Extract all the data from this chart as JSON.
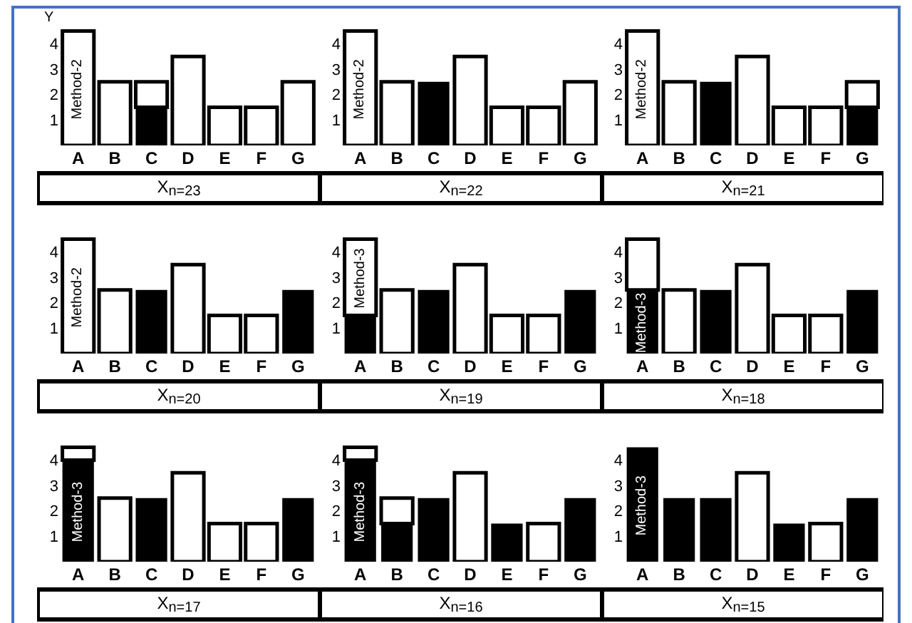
{
  "chart_data": [
    {
      "type": "bar",
      "stacked": true,
      "categories": [
        "A",
        "B",
        "C",
        "D",
        "E",
        "F",
        "G"
      ],
      "series": [
        {
          "color": "#000000",
          "values": [
            null,
            null,
            1.5,
            null,
            null,
            null,
            null
          ]
        },
        {
          "color": "#ffffff",
          "values": [
            4.5,
            2.5,
            1,
            3.5,
            1.5,
            1.5,
            2.5
          ]
        }
      ],
      "ylim": [
        0,
        4.6
      ],
      "yticks": [
        1,
        2,
        3,
        4
      ],
      "ylabel": "Y",
      "xlabel": "X$_{n=23}$",
      "annotations": [
        "Method-2"
      ]
    },
    {
      "type": "bar",
      "stacked": true,
      "categories": [
        "A",
        "B",
        "C",
        "D",
        "E",
        "F",
        "G"
      ],
      "series": [
        {
          "color": "#000000",
          "values": [
            null,
            null,
            2.5,
            null,
            null,
            null,
            null
          ]
        },
        {
          "color": "#ffffff",
          "values": [
            4.5,
            2.5,
            null,
            3.5,
            1.5,
            1.5,
            2.5
          ]
        }
      ],
      "ylim": [
        0,
        4.6
      ],
      "yticks": [
        1,
        2,
        3,
        4
      ],
      "xlabel": "X$_{n=22}$",
      "annotations": [
        "Method-2"
      ]
    },
    {
      "type": "bar",
      "stacked": true,
      "categories": [
        "A",
        "B",
        "C",
        "D",
        "E",
        "F",
        "G"
      ],
      "series": [
        {
          "color": "#000000",
          "values": [
            null,
            null,
            2.5,
            null,
            null,
            null,
            1.5
          ]
        },
        {
          "color": "#ffffff",
          "values": [
            4.5,
            2.5,
            null,
            3.5,
            1.5,
            1.5,
            1
          ]
        }
      ],
      "ylim": [
        0,
        4.6
      ],
      "yticks": [
        1,
        2,
        3,
        4
      ],
      "xlabel": "X$_{n=21}$",
      "annotations": [
        "Method-2"
      ]
    },
    {
      "type": "bar",
      "stacked": true,
      "categories": [
        "A",
        "B",
        "C",
        "D",
        "E",
        "F",
        "G"
      ],
      "series": [
        {
          "color": "#000000",
          "values": [
            null,
            null,
            2.5,
            null,
            null,
            null,
            2.5
          ]
        },
        {
          "color": "#ffffff",
          "values": [
            4.5,
            2.5,
            null,
            3.5,
            1.5,
            1.5,
            null
          ]
        }
      ],
      "ylim": [
        0,
        4.6
      ],
      "yticks": [
        1,
        2,
        3,
        4
      ],
      "xlabel": "X$_{n=20}$",
      "annotations": [
        "Method-2"
      ]
    },
    {
      "type": "bar",
      "stacked": true,
      "categories": [
        "A",
        "B",
        "C",
        "D",
        "E",
        "F",
        "G"
      ],
      "series": [
        {
          "color": "#000000",
          "values": [
            1.5,
            null,
            2.5,
            null,
            null,
            null,
            2.5
          ]
        },
        {
          "color": "#ffffff",
          "values": [
            3,
            2.5,
            null,
            3.5,
            1.5,
            1.5,
            null
          ]
        }
      ],
      "ylim": [
        0,
        4.6
      ],
      "yticks": [
        1,
        2,
        3,
        4
      ],
      "xlabel": "X$_{n=19}$",
      "annotations": [
        "Method-3"
      ]
    },
    {
      "type": "bar",
      "stacked": true,
      "categories": [
        "A",
        "B",
        "C",
        "D",
        "E",
        "F",
        "G"
      ],
      "series": [
        {
          "color": "#000000",
          "values": [
            2.5,
            null,
            2.5,
            null,
            null,
            null,
            2.5
          ]
        },
        {
          "color": "#ffffff",
          "values": [
            2,
            2.5,
            null,
            3.5,
            1.5,
            1.5,
            null
          ]
        }
      ],
      "ylim": [
        0,
        4.6
      ],
      "yticks": [
        1,
        2,
        3,
        4
      ],
      "xlabel": "X$_{n=18}$",
      "annotations": [
        "Method-3"
      ]
    },
    {
      "type": "bar",
      "stacked": true,
      "categories": [
        "A",
        "B",
        "C",
        "D",
        "E",
        "F",
        "G"
      ],
      "series": [
        {
          "color": "#000000",
          "values": [
            4,
            null,
            2.5,
            null,
            null,
            null,
            2.5
          ]
        },
        {
          "color": "#ffffff",
          "values": [
            0.5,
            2.5,
            null,
            3.5,
            1.5,
            1.5,
            null
          ]
        }
      ],
      "ylim": [
        0,
        4.6
      ],
      "yticks": [
        1,
        2,
        3,
        4
      ],
      "xlabel": "X$_{n=17}$",
      "annotations": [
        "Method-3"
      ]
    },
    {
      "type": "bar",
      "stacked": true,
      "categories": [
        "A",
        "B",
        "C",
        "D",
        "E",
        "F",
        "G"
      ],
      "series": [
        {
          "color": "#000000",
          "values": [
            4,
            1.5,
            2.5,
            null,
            1.5,
            null,
            2.5
          ]
        },
        {
          "color": "#ffffff",
          "values": [
            0.5,
            1,
            null,
            3.5,
            null,
            1.5,
            null
          ]
        }
      ],
      "ylim": [
        0,
        4.6
      ],
      "yticks": [
        1,
        2,
        3,
        4
      ],
      "xlabel": "X$_{n=16}$",
      "annotations": [
        "Method-3"
      ]
    },
    {
      "type": "bar",
      "stacked": true,
      "categories": [
        "A",
        "B",
        "C",
        "D",
        "E",
        "F",
        "G"
      ],
      "series": [
        {
          "color": "#000000",
          "values": [
            4.5,
            2.5,
            2.5,
            null,
            1.5,
            null,
            2.5
          ]
        },
        {
          "color": "#ffffff",
          "values": [
            null,
            null,
            null,
            3.5,
            null,
            1.5,
            null
          ]
        }
      ],
      "ylim": [
        0,
        4.6
      ],
      "yticks": [
        1,
        2,
        3,
        4
      ],
      "xlabel": "X$_{n=15}$",
      "annotations": [
        "Method-3"
      ]
    }
  ]
}
